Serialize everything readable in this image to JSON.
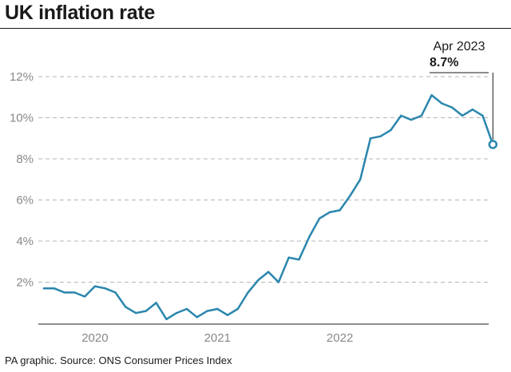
{
  "title": "UK inflation rate",
  "source": "PA graphic. Source: ONS Consumer Prices Index",
  "chart_data": {
    "type": "line",
    "title": "UK inflation rate",
    "xlabel": "",
    "ylabel": "",
    "ylim": [
      0,
      12
    ],
    "y_ticks": [
      "2%",
      "4%",
      "6%",
      "8%",
      "10%",
      "12%"
    ],
    "y_tick_values": [
      2,
      4,
      6,
      8,
      10,
      12
    ],
    "x_ticks": [
      "2020",
      "2021",
      "2022"
    ],
    "grid": true,
    "line_color": "#2a86ad",
    "series": [
      {
        "x": [
          "2019-08",
          "2019-09",
          "2019-10",
          "2019-11",
          "2019-12",
          "2020-01",
          "2020-02",
          "2020-03",
          "2020-04",
          "2020-05",
          "2020-06",
          "2020-07",
          "2020-08",
          "2020-09",
          "2020-10",
          "2020-11",
          "2020-12",
          "2021-01",
          "2021-02",
          "2021-03",
          "2021-04",
          "2021-05",
          "2021-06",
          "2021-07",
          "2021-08",
          "2021-09",
          "2021-10",
          "2021-11",
          "2021-12",
          "2022-01",
          "2022-02",
          "2022-03",
          "2022-04",
          "2022-05",
          "2022-06",
          "2022-07",
          "2022-08",
          "2022-09",
          "2022-10",
          "2022-11",
          "2022-12",
          "2023-01",
          "2023-02",
          "2023-03",
          "2023-04"
        ],
        "values": [
          1.7,
          1.7,
          1.5,
          1.5,
          1.3,
          1.8,
          1.7,
          1.5,
          0.8,
          0.5,
          0.6,
          1.0,
          0.2,
          0.5,
          0.7,
          0.3,
          0.6,
          0.7,
          0.4,
          0.7,
          1.5,
          2.1,
          2.5,
          2.0,
          3.2,
          3.1,
          4.2,
          5.1,
          5.4,
          5.5,
          6.2,
          7.0,
          9.0,
          9.1,
          9.4,
          10.1,
          9.9,
          10.1,
          11.1,
          10.7,
          10.5,
          10.1,
          10.4,
          10.1,
          8.7
        ]
      }
    ],
    "annotation": {
      "date": "Apr 2023",
      "value": "8.7%"
    }
  }
}
